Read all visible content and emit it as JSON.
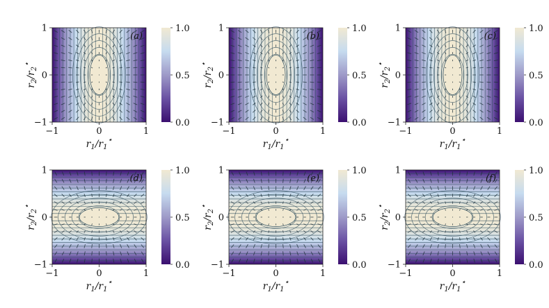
{
  "figure": {
    "colormap": [
      "#3b0f70",
      "#6a51a3",
      "#9e9ac8",
      "#c6dbef",
      "#f1e9d2"
    ],
    "contour_color": "#2f4f5f",
    "arrow_color": "#1f2f3a"
  },
  "chart_data": [
    {
      "type": "heatmap",
      "panel_label": "(a)",
      "field": "1 - r1^2 (elongated along r2)",
      "orientation": "vertical",
      "xlabel": "r_1/r_1^*",
      "ylabel": "r_2/r_2^*",
      "xlim": [
        -1,
        1
      ],
      "ylim": [
        -1,
        1
      ],
      "xticks": [
        "−1",
        "0",
        "1"
      ],
      "yticks": [
        "−1",
        "0",
        "1"
      ],
      "colorbar": {
        "range": [
          0.0,
          1.0
        ],
        "ticks": [
          "0.0",
          "0.5",
          "1.0"
        ]
      }
    },
    {
      "type": "heatmap",
      "panel_label": "(b)",
      "field": "1 - r1^2 (elongated along r2)",
      "orientation": "vertical",
      "xlabel": "r_1/r_1^*",
      "ylabel": "r_2/r_2^*",
      "xlim": [
        -1,
        1
      ],
      "ylim": [
        -1,
        1
      ],
      "xticks": [
        "−1",
        "0",
        "1"
      ],
      "yticks": [
        "−1",
        "0",
        "1"
      ],
      "colorbar": {
        "range": [
          0.0,
          1.0
        ],
        "ticks": [
          "0.0",
          "0.5",
          "1.0"
        ]
      }
    },
    {
      "type": "heatmap",
      "panel_label": "(c)",
      "field": "1 - r1^2 (elongated along r2)",
      "orientation": "vertical",
      "xlabel": "r_1/r_1^*",
      "ylabel": "r_2/r_2^*",
      "xlim": [
        -1,
        1
      ],
      "ylim": [
        -1,
        1
      ],
      "xticks": [
        "−1",
        "0",
        "1"
      ],
      "yticks": [
        "−1",
        "0",
        "1"
      ],
      "colorbar": {
        "range": [
          0.0,
          1.0
        ],
        "ticks": [
          "0.0",
          "0.5",
          "1.0"
        ]
      }
    },
    {
      "type": "heatmap",
      "panel_label": "(d)",
      "field": "1 - r2^2 (elongated along r1)",
      "orientation": "horizontal",
      "xlabel": "r_1/r_1^*",
      "ylabel": "r_2/r_2^*",
      "xlim": [
        -1,
        1
      ],
      "ylim": [
        -1,
        1
      ],
      "xticks": [
        "−1",
        "0",
        "1"
      ],
      "yticks": [
        "−1",
        "0",
        "1"
      ],
      "colorbar": {
        "range": [
          0.0,
          1.0
        ],
        "ticks": [
          "0.0",
          "0.5",
          "1.0"
        ]
      }
    },
    {
      "type": "heatmap",
      "panel_label": "(e)",
      "field": "1 - r2^2 (elongated along r1)",
      "orientation": "horizontal",
      "xlabel": "r_1/r_1^*",
      "ylabel": "r_2/r_2^*",
      "xlim": [
        -1,
        1
      ],
      "ylim": [
        -1,
        1
      ],
      "xticks": [
        "−1",
        "0",
        "1"
      ],
      "yticks": [
        "−1",
        "0",
        "1"
      ],
      "colorbar": {
        "range": [
          0.0,
          1.0
        ],
        "ticks": [
          "0.0",
          "0.5",
          "1.0"
        ]
      }
    },
    {
      "type": "heatmap",
      "panel_label": "(f)",
      "field": "1 - r2^2 (elongated along r1)",
      "orientation": "horizontal",
      "xlabel": "r_1/r_1^*",
      "ylabel": "r_2/r_2^*",
      "xlim": [
        -1,
        1
      ],
      "ylim": [
        -1,
        1
      ],
      "xticks": [
        "−1",
        "0",
        "1"
      ],
      "yticks": [
        "−1",
        "0",
        "1"
      ],
      "colorbar": {
        "range": [
          0.0,
          1.0
        ],
        "ticks": [
          "0.0",
          "0.5",
          "1.0"
        ]
      }
    }
  ]
}
